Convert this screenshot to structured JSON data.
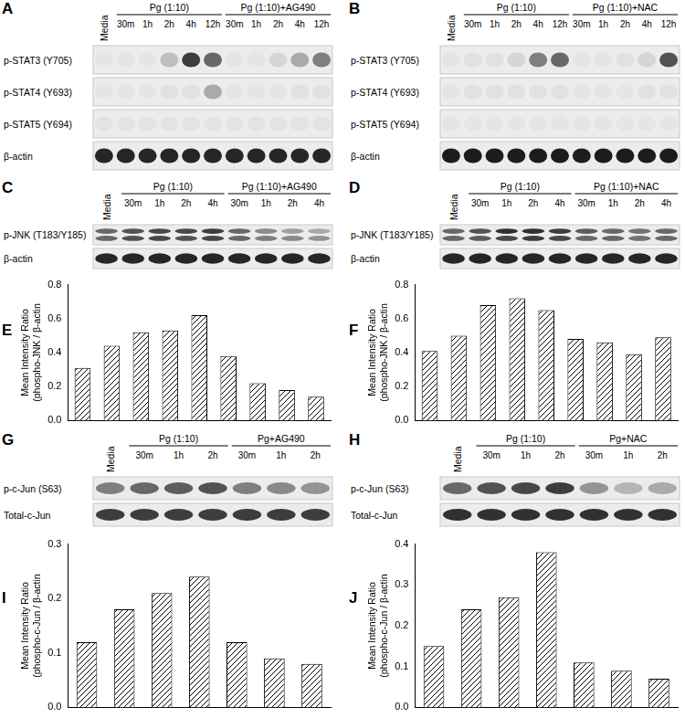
{
  "blots": [
    {
      "panel": "A",
      "single": "Media",
      "groups": [
        {
          "label": "Pg (1:10)",
          "lanes": [
            "30m",
            "1h",
            "2h",
            "4h",
            "12h"
          ]
        },
        {
          "label": "Pg (1:10)+AG490",
          "lanes": [
            "30m",
            "1h",
            "2h",
            "4h",
            "12h"
          ]
        }
      ],
      "rows": [
        {
          "label": "p-STAT3 (Y705)",
          "bands": [
            0.03,
            0.03,
            0.03,
            0.2,
            0.8,
            0.6,
            0.03,
            0.03,
            0.1,
            0.3,
            0.5
          ]
        },
        {
          "label": "p-STAT4 (Y693)",
          "bands": [
            0.03,
            0.03,
            0.03,
            0.05,
            0.05,
            0.3,
            0.03,
            0.03,
            0.03,
            0.05,
            0.05
          ]
        },
        {
          "label": "p-STAT5 (Y694)",
          "bands": [
            0.04,
            0.04,
            0.04,
            0.04,
            0.04,
            0.04,
            0.04,
            0.04,
            0.04,
            0.04,
            0.04
          ]
        },
        {
          "label": "β-actin",
          "bands": [
            0.9,
            0.9,
            0.9,
            0.9,
            0.9,
            0.9,
            0.9,
            0.9,
            0.9,
            0.9,
            0.9
          ]
        }
      ]
    },
    {
      "panel": "B",
      "single": "Media",
      "groups": [
        {
          "label": "Pg (1:10)",
          "lanes": [
            "30m",
            "1h",
            "2h",
            "4h",
            "12h"
          ]
        },
        {
          "label": "Pg (1:10)+NAC",
          "lanes": [
            "30m",
            "1h",
            "2h",
            "4h",
            "12h"
          ]
        }
      ],
      "rows": [
        {
          "label": "p-STAT3 (Y705)",
          "bands": [
            0.03,
            0.05,
            0.05,
            0.1,
            0.5,
            0.6,
            0.03,
            0.03,
            0.05,
            0.1,
            0.7
          ]
        },
        {
          "label": "p-STAT4 (Y693)",
          "bands": [
            0.03,
            0.05,
            0.05,
            0.05,
            0.05,
            0.05,
            0.03,
            0.03,
            0.03,
            0.05,
            0.05
          ]
        },
        {
          "label": "p-STAT5 (Y694)",
          "bands": [
            0.03,
            0.03,
            0.03,
            0.03,
            0.03,
            0.03,
            0.03,
            0.03,
            0.03,
            0.03,
            0.03
          ]
        },
        {
          "label": "β-actin",
          "bands": [
            0.95,
            0.95,
            0.95,
            0.95,
            0.95,
            0.95,
            0.95,
            0.95,
            0.95,
            0.95,
            0.95
          ]
        }
      ]
    },
    {
      "panel": "C",
      "single": "Media",
      "groups": [
        {
          "label": "Pg (1:10)",
          "lanes": [
            "30m",
            "1h",
            "2h",
            "4h"
          ]
        },
        {
          "label": "Pg (1:10)+AG490",
          "lanes": [
            "30m",
            "1h",
            "2h",
            "4h"
          ]
        }
      ],
      "rows": [
        {
          "label": "p-JNK (T183/Y185)",
          "bands": [
            [
              0.6,
              0.6
            ],
            [
              0.7,
              0.7
            ],
            [
              0.75,
              0.75
            ],
            [
              0.75,
              0.7
            ],
            [
              0.8,
              0.75
            ],
            [
              0.6,
              0.6
            ],
            [
              0.45,
              0.5
            ],
            [
              0.35,
              0.45
            ],
            [
              0.3,
              0.4
            ]
          ]
        },
        {
          "label": "β-actin",
          "bands": [
            0.9,
            0.9,
            0.9,
            0.9,
            0.9,
            0.9,
            0.9,
            0.9,
            0.9
          ]
        }
      ]
    },
    {
      "panel": "D",
      "single": "Media",
      "groups": [
        {
          "label": "Pg (1:10)",
          "lanes": [
            "30m",
            "1h",
            "2h",
            "4h"
          ]
        },
        {
          "label": "Pg (1:10)+NAC",
          "lanes": [
            "30m",
            "1h",
            "2h",
            "4h"
          ]
        }
      ],
      "rows": [
        {
          "label": "p-JNK (T183/Y185)",
          "bands": [
            [
              0.6,
              0.6
            ],
            [
              0.7,
              0.65
            ],
            [
              0.85,
              0.75
            ],
            [
              0.85,
              0.8
            ],
            [
              0.8,
              0.75
            ],
            [
              0.65,
              0.6
            ],
            [
              0.6,
              0.6
            ],
            [
              0.55,
              0.55
            ],
            [
              0.6,
              0.6
            ]
          ]
        },
        {
          "label": "β-actin",
          "bands": [
            0.9,
            0.9,
            0.9,
            0.9,
            0.9,
            0.9,
            0.9,
            0.9,
            0.9
          ]
        }
      ]
    },
    {
      "panel": "G",
      "single": "Media",
      "groups": [
        {
          "label": "Pg (1:10)",
          "lanes": [
            "30m",
            "1h",
            "2h"
          ]
        },
        {
          "label": "Pg+AG490",
          "lanes": [
            "30m",
            "1h",
            "2h"
          ]
        }
      ],
      "rows": [
        {
          "label": "p-c-Jun (S63)",
          "bands": [
            0.5,
            0.6,
            0.65,
            0.7,
            0.5,
            0.45,
            0.4
          ]
        },
        {
          "label": "Total-c-Jun",
          "bands": [
            0.8,
            0.8,
            0.8,
            0.8,
            0.8,
            0.8,
            0.8
          ]
        }
      ]
    },
    {
      "panel": "H",
      "single": "Media",
      "groups": [
        {
          "label": "Pg (1:10)",
          "lanes": [
            "30m",
            "1h",
            "2h"
          ]
        },
        {
          "label": "Pg+NAC",
          "lanes": [
            "30m",
            "1h",
            "2h"
          ]
        }
      ],
      "rows": [
        {
          "label": "p-c-Jun (S63)",
          "bands": [
            0.6,
            0.7,
            0.75,
            0.8,
            0.4,
            0.25,
            0.3
          ]
        },
        {
          "label": "Total-c-Jun",
          "bands": [
            0.85,
            0.85,
            0.85,
            0.85,
            0.85,
            0.85,
            0.85
          ]
        }
      ]
    }
  ],
  "chart_data": [
    {
      "panel": "E",
      "type": "bar",
      "categories": [
        null,
        null,
        null,
        null,
        null,
        null,
        null,
        null,
        null
      ],
      "values": [
        0.31,
        0.44,
        0.52,
        0.53,
        0.62,
        0.38,
        0.22,
        0.18,
        0.14
      ],
      "color": "#000000",
      "ylim": [
        0,
        0.8
      ],
      "yticks": [
        {
          "value": 0,
          "label": "0.0"
        },
        0.2,
        0.4,
        0.6,
        0.8
      ],
      "y_label": [
        "Mean Intensity Ratio",
        "(phospho-JNK / β-actin"
      ],
      "grid": false,
      "tick_labels": "y"
    },
    {
      "panel": "F",
      "type": "bar",
      "categories": [
        null,
        null,
        null,
        null,
        null,
        null,
        null,
        null,
        null
      ],
      "values": [
        0.41,
        0.5,
        0.68,
        0.72,
        0.65,
        0.48,
        0.46,
        0.39,
        0.49
      ],
      "color": "#000000",
      "ylim": [
        0,
        0.8
      ],
      "yticks": [
        {
          "value": 0,
          "label": "0.0"
        },
        0.2,
        0.4,
        0.6,
        0.8
      ],
      "y_label": [
        "Mean Intensity Ratio",
        "(phospho-JNK / β-actin"
      ],
      "grid": false,
      "tick_labels": "y"
    },
    {
      "panel": "I",
      "type": "bar",
      "categories": [
        null,
        null,
        null,
        null,
        null,
        null,
        null
      ],
      "values": [
        0.12,
        0.18,
        0.21,
        0.24,
        0.12,
        0.09,
        0.08
      ],
      "color": "#000000",
      "ylim": [
        0,
        0.3
      ],
      "yticks": [
        {
          "value": 0,
          "label": "0.0"
        },
        0.1,
        0.2,
        0.3
      ],
      "y_label": [
        "Mean Intensity Ratio",
        "(phospho-c-Jun / β-actin"
      ],
      "grid": false,
      "tick_labels": "y"
    },
    {
      "panel": "J",
      "type": "bar",
      "categories": [
        null,
        null,
        null,
        null,
        null,
        null,
        null
      ],
      "values": [
        0.15,
        0.24,
        0.27,
        0.38,
        0.11,
        0.09,
        0.07
      ],
      "color": "#000000",
      "ylim": [
        0,
        0.4
      ],
      "yticks": [
        {
          "value": 0,
          "label": "0.0"
        },
        0.1,
        0.2,
        0.3,
        0.4
      ],
      "y_label": [
        "Mean Intensity Ratio",
        "(phospho-c-Jun / β-actin"
      ],
      "grid": false,
      "tick_labels": "y"
    }
  ]
}
